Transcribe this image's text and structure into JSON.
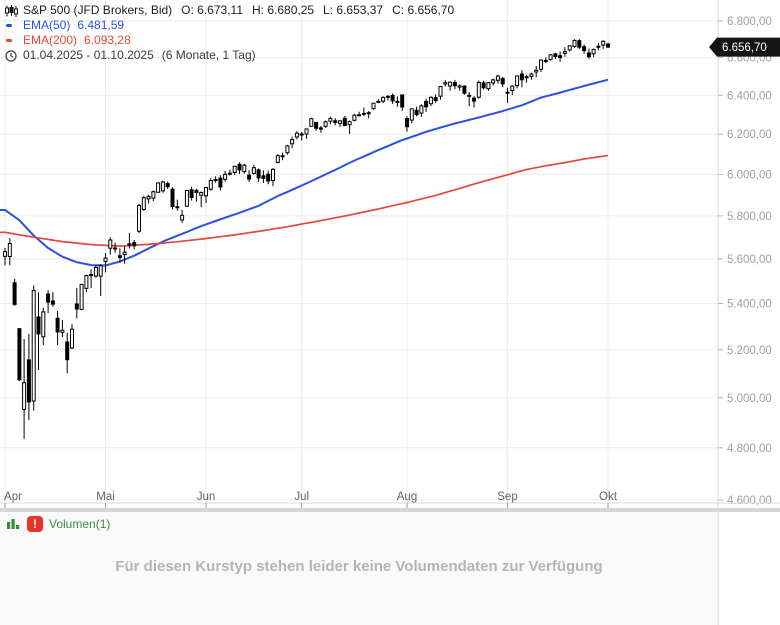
{
  "header": {
    "title": "S&P 500 (JFD Brokers, Bid)",
    "ohlc": {
      "open": "O: 6.673,11",
      "high": "H: 6.680,25",
      "low": "L: 6.653,37",
      "close": "C: 6.656,70"
    },
    "ema50_label": "EMA(50)",
    "ema50_value": "6.481,59",
    "ema200_label": "EMA(200)",
    "ema200_value": "6.093,28",
    "date_range": "01.04.2025 - 01.10.2025",
    "period": "(6 Monate, 1 Tag)"
  },
  "volume_panel": {
    "legend_label": "Volumen(1)",
    "alert_glyph": "!",
    "message": "Für diesen Kurstyp stehen leider keine Volumendaten zur Verfügung"
  },
  "colors": {
    "accent_blue": "#2a50e2",
    "accent_red": "#e2493a",
    "candle": "#000000",
    "grid": "#ececec",
    "axis_border": "#d9d9d9",
    "axis_text": "#9aa0a6",
    "month_text": "#5f6368",
    "tag_bg": "#141414",
    "tag_text": "#ffffff",
    "separator": "#d6d6d6",
    "volume_bg": "#fafafa",
    "volume_green": "#2f9331",
    "legend_green": "#3c8d3f",
    "badge_red": "#e8322a"
  },
  "chart_data": {
    "type": "candlestick",
    "title": "S&P 500 (JFD Brokers, Bid)",
    "timeframe": "6 Monate, 1 Tag",
    "date_range": "01.04.2025 - 01.10.2025",
    "scale": "logarithmic",
    "grid": true,
    "x_axis": {
      "labels": [
        "Apr",
        "Mai",
        "Jun",
        "Jul",
        "Aug",
        "Sep",
        "Okt"
      ],
      "month_start_indices": [
        0,
        21,
        42,
        62,
        84,
        105,
        126
      ]
    },
    "y_axis": {
      "top_price": 6800,
      "bottom_price": 4600,
      "ticks": [
        {
          "price": 6800,
          "label": "6.800,00"
        },
        {
          "price": 6600,
          "label": "6.600,00"
        },
        {
          "price": 6400,
          "label": "6.400,00"
        },
        {
          "price": 6200,
          "label": "6.200,00"
        },
        {
          "price": 6000,
          "label": "6.000,00"
        },
        {
          "price": 5800,
          "label": "5.800,00"
        },
        {
          "price": 5600,
          "label": "5.600,00"
        },
        {
          "price": 5400,
          "label": "5.400,00"
        },
        {
          "price": 5200,
          "label": "5.200,00"
        },
        {
          "price": 5000,
          "label": "5.000,00"
        },
        {
          "price": 4800,
          "label": "4.800,00"
        },
        {
          "price": 4600,
          "label": "4.600,00"
        }
      ]
    },
    "last": {
      "price": 6656.7,
      "label": "6.656,70"
    },
    "series": [
      {
        "name": "EMA(50)",
        "color": "#2a50e2",
        "last_value": 6481.59,
        "keypoints": [
          [
            0,
            5828
          ],
          [
            3,
            5780
          ],
          [
            6,
            5708
          ],
          [
            9,
            5650
          ],
          [
            12,
            5610
          ],
          [
            15,
            5585
          ],
          [
            18,
            5572
          ],
          [
            21,
            5570
          ],
          [
            24,
            5588
          ],
          [
            27,
            5615
          ],
          [
            30,
            5648
          ],
          [
            33,
            5680
          ],
          [
            37,
            5716
          ],
          [
            41,
            5752
          ],
          [
            45,
            5784
          ],
          [
            49,
            5815
          ],
          [
            53,
            5848
          ],
          [
            57,
            5895
          ],
          [
            61,
            5935
          ],
          [
            65,
            5978
          ],
          [
            69,
            6022
          ],
          [
            73,
            6068
          ],
          [
            78,
            6120
          ],
          [
            83,
            6170
          ],
          [
            88,
            6212
          ],
          [
            93,
            6248
          ],
          [
            99,
            6285
          ],
          [
            104,
            6318
          ],
          [
            108,
            6348
          ],
          [
            112,
            6388
          ],
          [
            116,
            6414
          ],
          [
            120,
            6442
          ],
          [
            123,
            6462
          ],
          [
            126,
            6482
          ]
        ]
      },
      {
        "name": "EMA(200)",
        "color": "#e2493a",
        "last_value": 6093.28,
        "keypoints": [
          [
            0,
            5723
          ],
          [
            6,
            5700
          ],
          [
            12,
            5680
          ],
          [
            18,
            5666
          ],
          [
            24,
            5659
          ],
          [
            30,
            5667
          ],
          [
            36,
            5679
          ],
          [
            42,
            5694
          ],
          [
            48,
            5711
          ],
          [
            54,
            5731
          ],
          [
            60,
            5753
          ],
          [
            66,
            5778
          ],
          [
            72,
            5804
          ],
          [
            78,
            5833
          ],
          [
            84,
            5864
          ],
          [
            90,
            5898
          ],
          [
            95,
            5932
          ],
          [
            100,
            5966
          ],
          [
            105,
            5998
          ],
          [
            109,
            6024
          ],
          [
            113,
            6042
          ],
          [
            117,
            6058
          ],
          [
            121,
            6076
          ],
          [
            126,
            6093
          ]
        ]
      }
    ],
    "candles": [
      [
        5612,
        5650,
        5571,
        5633
      ],
      [
        5611,
        5695,
        5571,
        5671
      ],
      [
        5492,
        5510,
        5390,
        5396
      ],
      [
        5290,
        5292,
        5069,
        5074
      ],
      [
        4953,
        5246,
        4835,
        5062
      ],
      [
        5157,
        5268,
        4910,
        4983
      ],
      [
        4987,
        5481,
        4948,
        5457
      ],
      [
        5341,
        5450,
        5115,
        5268
      ],
      [
        5255,
        5381,
        5220,
        5363
      ],
      [
        5442,
        5459,
        5358,
        5406
      ],
      [
        5411,
        5450,
        5386,
        5397
      ],
      [
        5335,
        5367,
        5220,
        5276
      ],
      [
        5274,
        5328,
        5255,
        5283
      ],
      [
        5233,
        5273,
        5101,
        5158
      ],
      [
        5208,
        5309,
        5203,
        5288
      ],
      [
        5398,
        5469,
        5335,
        5376
      ],
      [
        5374,
        5487,
        5372,
        5485
      ],
      [
        5467,
        5528,
        5451,
        5525
      ],
      [
        5529,
        5553,
        5468,
        5529
      ],
      [
        5522,
        5572,
        5515,
        5561
      ],
      [
        5522,
        5577,
        5433,
        5569
      ],
      [
        5589,
        5626,
        5539,
        5604
      ],
      [
        5649,
        5700,
        5620,
        5687
      ],
      [
        5650,
        5674,
        5628,
        5650
      ],
      [
        5615,
        5649,
        5586,
        5607
      ],
      [
        5620,
        5659,
        5578,
        5631
      ],
      [
        5670,
        5720,
        5648,
        5664
      ],
      [
        5675,
        5687,
        5644,
        5660
      ],
      [
        5728,
        5858,
        5720,
        5850
      ],
      [
        5831,
        5896,
        5824,
        5887
      ],
      [
        5881,
        5901,
        5859,
        5893
      ],
      [
        5885,
        5921,
        5870,
        5916
      ],
      [
        5913,
        5962,
        5911,
        5958
      ],
      [
        5920,
        5968,
        5910,
        5963
      ],
      [
        5955,
        5965,
        5929,
        5940
      ],
      [
        5928,
        5937,
        5831,
        5845
      ],
      [
        5844,
        5878,
        5825,
        5842
      ],
      [
        5781,
        5829,
        5767,
        5803
      ],
      [
        5846,
        5925,
        5843,
        5922
      ],
      [
        5925,
        5940,
        5873,
        5888
      ],
      [
        5922,
        5930,
        5868,
        5912
      ],
      [
        5899,
        5917,
        5842,
        5912
      ],
      [
        5896,
        5939,
        5861,
        5936
      ],
      [
        5928,
        5981,
        5921,
        5970
      ],
      [
        5975,
        5990,
        5959,
        5971
      ],
      [
        5982,
        5996,
        5921,
        5939
      ],
      [
        5976,
        6017,
        5965,
        6000
      ],
      [
        6004,
        6022,
        5994,
        6006
      ],
      [
        6009,
        6043,
        5997,
        6039
      ],
      [
        6049,
        6059,
        6002,
        6022
      ],
      [
        6014,
        6051,
        6004,
        6045
      ],
      [
        5996,
        6021,
        5963,
        5977
      ],
      [
        6005,
        6047,
        5999,
        6033
      ],
      [
        6022,
        6030,
        5963,
        5983
      ],
      [
        5993,
        6020,
        5958,
        5981
      ],
      [
        6001,
        6018,
        5952,
        5968
      ],
      [
        5970,
        6031,
        5943,
        6025
      ],
      [
        6059,
        6101,
        6054,
        6092
      ],
      [
        6091,
        6108,
        6070,
        6092
      ],
      [
        6107,
        6146,
        6097,
        6141
      ],
      [
        6152,
        6188,
        6130,
        6173
      ],
      [
        6186,
        6215,
        6174,
        6205
      ],
      [
        6201,
        6211,
        6168,
        6198
      ],
      [
        6201,
        6228,
        6177,
        6227
      ],
      [
        6240,
        6284,
        6238,
        6279
      ],
      [
        6260,
        6262,
        6218,
        6230
      ],
      [
        6232,
        6242,
        6208,
        6226
      ],
      [
        6240,
        6269,
        6232,
        6263
      ],
      [
        6266,
        6290,
        6251,
        6280
      ],
      [
        6268,
        6282,
        6245,
        6260
      ],
      [
        6255,
        6271,
        6236,
        6268
      ],
      [
        6281,
        6293,
        6240,
        6244
      ],
      [
        6248,
        6270,
        6201,
        6264
      ],
      [
        6271,
        6304,
        6265,
        6297
      ],
      [
        6299,
        6315,
        6291,
        6297
      ],
      [
        6303,
        6336,
        6294,
        6306
      ],
      [
        6307,
        6318,
        6281,
        6310
      ],
      [
        6331,
        6360,
        6325,
        6359
      ],
      [
        6368,
        6381,
        6360,
        6363
      ],
      [
        6369,
        6395,
        6360,
        6389
      ],
      [
        6395,
        6401,
        6373,
        6390
      ],
      [
        6399,
        6410,
        6355,
        6371
      ],
      [
        6368,
        6394,
        6340,
        6363
      ],
      [
        6402,
        6404,
        6319,
        6339
      ],
      [
        6280,
        6291,
        6213,
        6238
      ],
      [
        6272,
        6332,
        6256,
        6330
      ],
      [
        6322,
        6341,
        6291,
        6300
      ],
      [
        6308,
        6353,
        6289,
        6345
      ],
      [
        6368,
        6382,
        6314,
        6340
      ],
      [
        6356,
        6395,
        6344,
        6389
      ],
      [
        6388,
        6404,
        6361,
        6373
      ],
      [
        6395,
        6446,
        6377,
        6446
      ],
      [
        6459,
        6481,
        6446,
        6466
      ],
      [
        6449,
        6473,
        6424,
        6469
      ],
      [
        6467,
        6481,
        6432,
        6450
      ],
      [
        6442,
        6457,
        6424,
        6449
      ],
      [
        6448,
        6453,
        6402,
        6411
      ],
      [
        6400,
        6418,
        6343,
        6395
      ],
      [
        6385,
        6395,
        6336,
        6370
      ],
      [
        6390,
        6477,
        6383,
        6467
      ],
      [
        6465,
        6477,
        6430,
        6439
      ],
      [
        6435,
        6470,
        6423,
        6466
      ],
      [
        6465,
        6488,
        6452,
        6481
      ],
      [
        6479,
        6508,
        6461,
        6501
      ],
      [
        6489,
        6497,
        6443,
        6460
      ],
      [
        6416,
        6440,
        6360,
        6415
      ],
      [
        6425,
        6453,
        6401,
        6448
      ],
      [
        6451,
        6503,
        6436,
        6502
      ],
      [
        6512,
        6533,
        6442,
        6481
      ],
      [
        6498,
        6508,
        6466,
        6495
      ],
      [
        6500,
        6519,
        6482,
        6512
      ],
      [
        6523,
        6555,
        6495,
        6532
      ],
      [
        6537,
        6590,
        6523,
        6587
      ],
      [
        6585,
        6601,
        6570,
        6584
      ],
      [
        6590,
        6619,
        6583,
        6615
      ],
      [
        6620,
        6626,
        6593,
        6606
      ],
      [
        6610,
        6633,
        6577,
        6600
      ],
      [
        6623,
        6656,
        6604,
        6632
      ],
      [
        6642,
        6666,
        6632,
        6664
      ],
      [
        6660,
        6699,
        6653,
        6693
      ],
      [
        6692,
        6700,
        6645,
        6656
      ],
      [
        6659,
        6670,
        6621,
        6638
      ],
      [
        6625,
        6649,
        6594,
        6605
      ],
      [
        6620,
        6649,
        6602,
        6644
      ],
      [
        6657,
        6679,
        6640,
        6661
      ],
      [
        6668,
        6695,
        6647,
        6688
      ],
      [
        6673.11,
        6680.25,
        6653.37,
        6656.7
      ]
    ]
  }
}
